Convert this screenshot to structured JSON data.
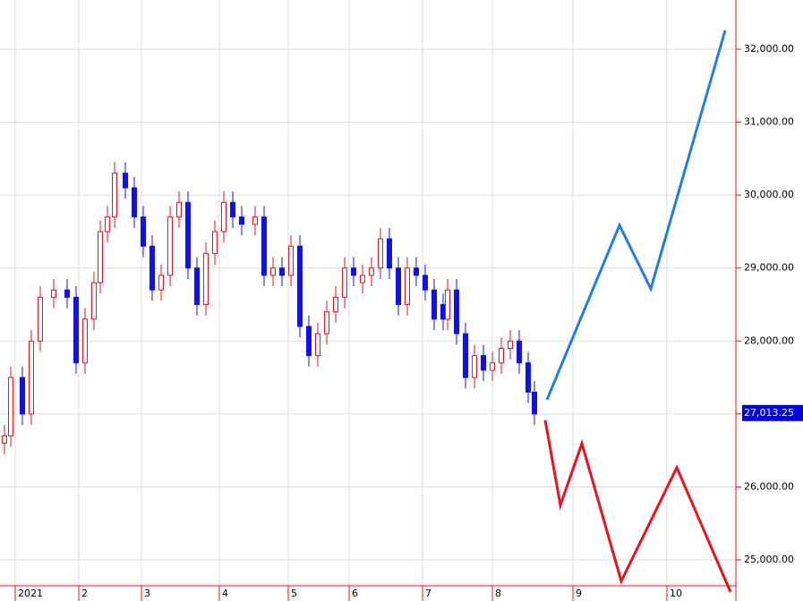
{
  "chart_data": {
    "type": "candlestick",
    "x": [
      1,
      2.4,
      5,
      7,
      9,
      12,
      15,
      17,
      19,
      21,
      22.4,
      24,
      25.6,
      28,
      30,
      32,
      34,
      36,
      38,
      40,
      42,
      44,
      46,
      48,
      50,
      52,
      54,
      57,
      59,
      61,
      63,
      65,
      67,
      69,
      71,
      73,
      75,
      77,
      79,
      81,
      83,
      85,
      87,
      89,
      91,
      93,
      95,
      97,
      99,
      100,
      102,
      104,
      106,
      108,
      110,
      112,
      114,
      116,
      118,
      119.4
    ],
    "open": [
      26600,
      26700,
      27500,
      27000,
      28000,
      28600,
      28700,
      28600,
      27700,
      28300,
      28800,
      29500,
      29700,
      30300,
      30100,
      29700,
      29300,
      28700,
      28900,
      29700,
      29900,
      29000,
      28500,
      29200,
      29500,
      29900,
      29700,
      29600,
      29700,
      28900,
      29000,
      28900,
      29300,
      28200,
      27800,
      28100,
      28400,
      28600,
      29000,
      28800,
      28900,
      29000,
      29400,
      29000,
      28500,
      29000,
      28900,
      28700,
      28500,
      28300,
      28700,
      28100,
      27500,
      27800,
      27600,
      27700,
      27900,
      28000,
      27700,
      27300
    ],
    "high": [
      26850,
      27650,
      27650,
      28150,
      28750,
      28850,
      28850,
      28750,
      28450,
      28950,
      29650,
      29850,
      30450,
      30450,
      30250,
      29850,
      29450,
      29050,
      29850,
      30050,
      30050,
      29150,
      29350,
      29650,
      30050,
      30050,
      29850,
      29850,
      29850,
      29150,
      29150,
      29450,
      29450,
      28350,
      28250,
      28550,
      28750,
      29150,
      29150,
      29050,
      29150,
      29550,
      29550,
      29150,
      29150,
      29150,
      29050,
      28850,
      28650,
      28850,
      28850,
      28250,
      27950,
      27950,
      27850,
      28050,
      28150,
      28150,
      27850,
      27450
    ],
    "low": [
      26450,
      26550,
      26850,
      26850,
      27850,
      28450,
      28450,
      27550,
      27550,
      28150,
      28650,
      29350,
      29550,
      29950,
      29550,
      29150,
      28550,
      28550,
      28750,
      29550,
      28850,
      28350,
      28350,
      29050,
      29350,
      29550,
      29450,
      29450,
      28750,
      28750,
      28750,
      28750,
      28050,
      27650,
      27650,
      27950,
      28250,
      28450,
      28750,
      28650,
      28750,
      28850,
      28850,
      28350,
      28350,
      28750,
      28550,
      28150,
      28150,
      28150,
      27950,
      27350,
      27350,
      27450,
      27450,
      27550,
      27750,
      27550,
      27150,
      26850
    ],
    "close": [
      26700,
      27500,
      27000,
      28000,
      28600,
      28700,
      28600,
      27700,
      28300,
      28800,
      29500,
      29700,
      30300,
      30100,
      29700,
      29300,
      28700,
      28900,
      29700,
      29900,
      29000,
      28500,
      29200,
      29500,
      29900,
      29700,
      29600,
      29700,
      28900,
      29000,
      28900,
      29300,
      28200,
      27800,
      28100,
      28400,
      28600,
      29000,
      28900,
      28900,
      29000,
      29400,
      29000,
      28500,
      29000,
      28900,
      28700,
      28300,
      28300,
      28700,
      28100,
      27500,
      27800,
      27600,
      27700,
      27900,
      28000,
      27700,
      27300,
      27000
    ],
    "up_color": "#e8131b",
    "down_color": "#1010e8",
    "projections": [
      {
        "color": "#1e7fe0",
        "x": [
          122.2,
          138.4,
          145.4,
          162
        ],
        "values": [
          27196,
          29586,
          28716,
          32257
        ]
      },
      {
        "color": "#e8131b",
        "x": [
          121.8,
          125.2,
          130,
          138.8,
          151.2,
          163.2
        ],
        "values": [
          26914,
          25750,
          26596,
          24708,
          26265,
          24561
        ]
      }
    ],
    "current_price": {
      "value": 27013.25,
      "label": "27,013.25"
    },
    "xlim": [
      0,
      164.4
    ],
    "xticks": [
      {
        "value": 3.4,
        "label": "2021"
      },
      {
        "value": 17.6,
        "label": "2"
      },
      {
        "value": 31.6,
        "label": "3"
      },
      {
        "value": 49,
        "label": "4"
      },
      {
        "value": 64.4,
        "label": "5"
      },
      {
        "value": 78,
        "label": "6"
      },
      {
        "value": 94.4,
        "label": "7"
      },
      {
        "value": 110,
        "label": "8"
      },
      {
        "value": 128,
        "label": "9"
      },
      {
        "value": 149,
        "label": "10"
      }
    ],
    "ylim": [
      24645,
      32674
    ],
    "yticks": [
      {
        "value": 25000,
        "label": "25,000.00"
      },
      {
        "value": 26000,
        "label": "26,000.00"
      },
      {
        "value": 27000,
        "label": "27,000.00"
      },
      {
        "value": 28000,
        "label": "28,000.00"
      },
      {
        "value": 29000,
        "label": "29,000.00"
      },
      {
        "value": 30000,
        "label": "30,000.00"
      },
      {
        "value": 31000,
        "label": "31,000.00"
      },
      {
        "value": 32000,
        "label": "32,000.00"
      }
    ],
    "grid": true
  }
}
